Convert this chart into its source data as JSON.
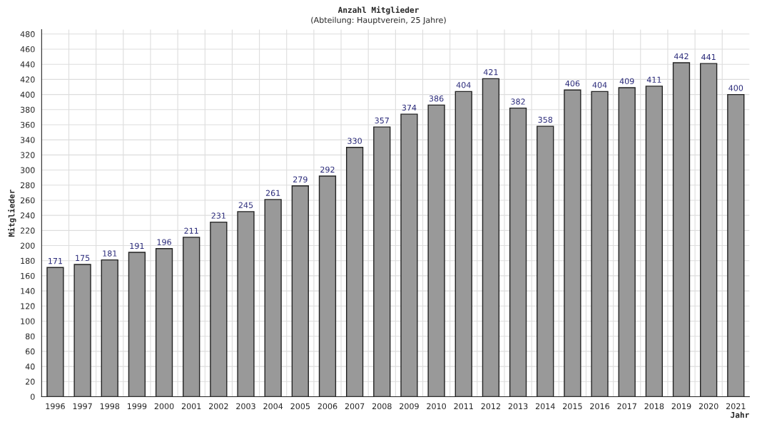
{
  "chart_data": {
    "type": "bar",
    "title": "Anzahl Mitglieder",
    "subtitle": "(Abteilung: Hauptverein, 25 Jahre)",
    "xlabel": "Jahr",
    "ylabel": "Mitglieder",
    "categories": [
      "1996",
      "1997",
      "1998",
      "1999",
      "2000",
      "2001",
      "2002",
      "2003",
      "2004",
      "2005",
      "2006",
      "2007",
      "2008",
      "2009",
      "2010",
      "2011",
      "2012",
      "2013",
      "2014",
      "2015",
      "2016",
      "2017",
      "2018",
      "2019",
      "2020",
      "2021"
    ],
    "values": [
      171,
      175,
      181,
      191,
      196,
      211,
      231,
      245,
      261,
      279,
      292,
      330,
      357,
      374,
      386,
      404,
      421,
      382,
      358,
      406,
      404,
      409,
      411,
      442,
      441,
      400
    ],
    "color": "#999999",
    "data_labels": true,
    "grid": true,
    "ylim": [
      0,
      486
    ],
    "yticks": [
      0,
      20,
      40,
      60,
      80,
      100,
      120,
      140,
      160,
      180,
      200,
      220,
      240,
      260,
      280,
      300,
      320,
      340,
      360,
      380,
      400,
      420,
      440,
      460,
      480
    ]
  }
}
